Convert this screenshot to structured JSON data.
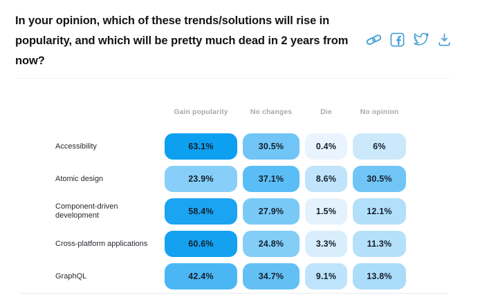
{
  "header": {
    "title": "In your opinion, which of these trends/solutions will rise in popularity, and which will be pretty much dead in 2 years from now?",
    "share_icons": [
      "link-icon",
      "facebook-icon",
      "twitter-icon",
      "download-icon"
    ],
    "icon_color": "#4ba0d6"
  },
  "table": {
    "columns": [
      "Gain popularity",
      "No changes",
      "Die",
      "No opinion"
    ],
    "rows": [
      {
        "label": "Accessibility",
        "values": [
          "63.1%",
          "30.5%",
          "0.4%",
          "6%"
        ]
      },
      {
        "label": "Atomic design",
        "values": [
          "23.9%",
          "37.1%",
          "8.6%",
          "30.5%"
        ]
      },
      {
        "label": "Component-driven development",
        "values": [
          "58.4%",
          "27.9%",
          "1.5%",
          "12.1%"
        ]
      },
      {
        "label": "Cross-platform applications",
        "values": [
          "60.6%",
          "24.8%",
          "3.3%",
          "11.3%"
        ]
      },
      {
        "label": "GraphQL",
        "values": [
          "42.4%",
          "34.7%",
          "9.1%",
          "13.8%"
        ]
      }
    ]
  },
  "chart_data": {
    "type": "heatmap",
    "title": "In your opinion, which of these trends/solutions will rise in popularity, and which will be pretty much dead in 2 years from now?",
    "categories": [
      "Accessibility",
      "Atomic design",
      "Component-driven development",
      "Cross-platform applications",
      "GraphQL"
    ],
    "series": [
      {
        "name": "Gain popularity",
        "values": [
          63.1,
          23.9,
          58.4,
          60.6,
          42.4
        ]
      },
      {
        "name": "No changes",
        "values": [
          30.5,
          37.1,
          27.9,
          24.8,
          34.7
        ]
      },
      {
        "name": "Die",
        "values": [
          0.4,
          8.6,
          1.5,
          3.3,
          9.1
        ]
      },
      {
        "name": "No opinion",
        "values": [
          6.0,
          30.5,
          12.1,
          11.3,
          13.8
        ]
      }
    ],
    "unit": "%",
    "legend_position": "none",
    "grid": false,
    "color_scale": {
      "min_color": "#eef6fe",
      "max_color": "#0d9ff0",
      "domain": [
        0,
        63.1
      ],
      "exponent": 0.8
    }
  }
}
